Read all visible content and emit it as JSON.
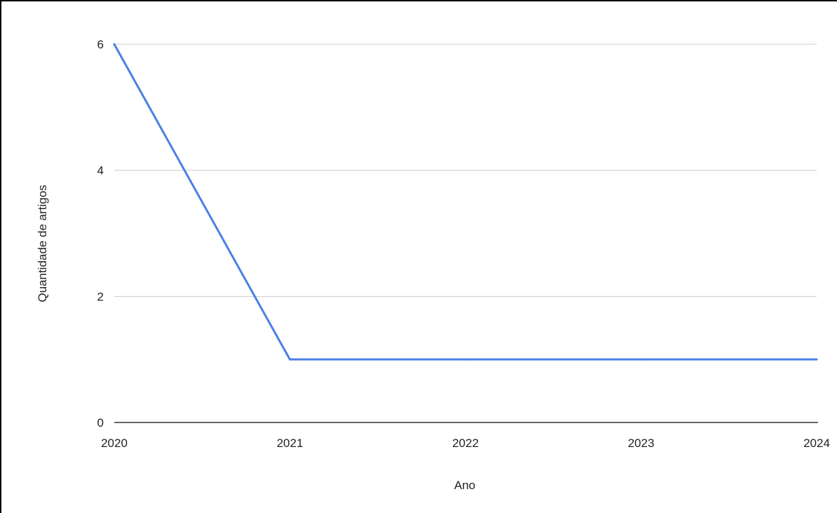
{
  "chart_data": {
    "type": "line",
    "title": "",
    "xlabel": "Ano",
    "ylabel": "Quantidade de artigos",
    "x": [
      2020,
      2021,
      2022,
      2023,
      2024
    ],
    "series": [
      {
        "values": [
          6,
          1,
          1,
          1,
          1
        ]
      }
    ],
    "xlim": [
      2020,
      2024
    ],
    "ylim": [
      0,
      6
    ],
    "yticks": [
      0,
      2,
      4,
      6
    ],
    "xticks": [
      "2020",
      "2021",
      "2022",
      "2023",
      "2024"
    ],
    "grid": true,
    "legend": "none",
    "colors": {
      "line": "#4a80e6",
      "grid": "#cccccc",
      "axis": "#333333"
    }
  }
}
